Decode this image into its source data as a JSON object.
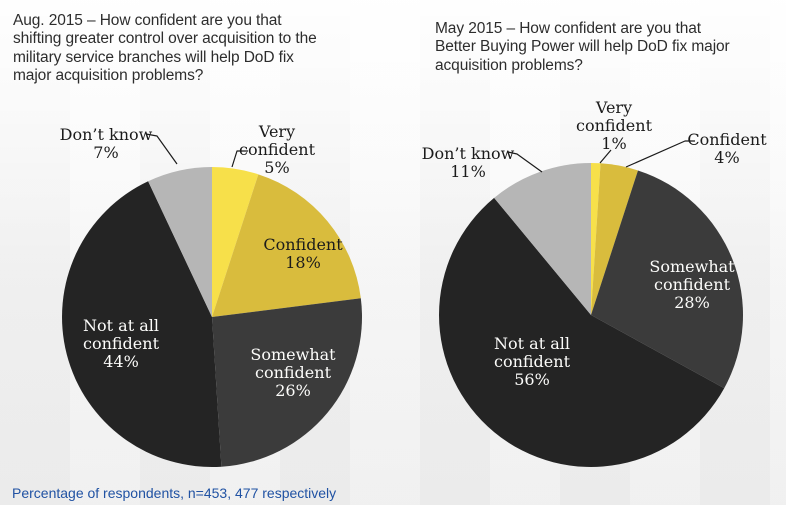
{
  "footnote": "Percentage of respondents, n=453, 477 respectively",
  "colors": {
    "very_confident": "#F7E04A",
    "confident": "#D9BC3D",
    "somewhat_confident": "#3B3B3B",
    "not_at_all_confident": "#242424",
    "dont_know": "#B6B6B6",
    "title_text": "#2D2D2D",
    "footnote_text": "#2052A3"
  },
  "chart_data": [
    {
      "type": "pie",
      "title": "Aug. 2015 – How confident are you that\nshifting greater control over acquisition to the\nmilitary service branches will help DoD fix\nmajor acquisition problems?",
      "n": 453,
      "unit": "%",
      "start": "top",
      "direction": "clockwise",
      "slices": [
        {
          "label": "Very confident",
          "value": 5,
          "color": "#F7E04A"
        },
        {
          "label": "Confident",
          "value": 18,
          "color": "#D9BC3D"
        },
        {
          "label": "Somewhat confident",
          "value": 26,
          "color": "#3B3B3B"
        },
        {
          "label": "Not at all confident",
          "value": 44,
          "color": "#242424"
        },
        {
          "label": "Don’t know",
          "value": 7,
          "color": "#B6B6B6"
        }
      ]
    },
    {
      "type": "pie",
      "title": "May 2015 – How confident are you that\nBetter Buying Power will help DoD fix major\nacquisition problems?",
      "n": 477,
      "unit": "%",
      "start": "top",
      "direction": "clockwise",
      "slices": [
        {
          "label": "Very confident",
          "value": 1,
          "color": "#F7E04A"
        },
        {
          "label": "Confident",
          "value": 4,
          "color": "#D9BC3D"
        },
        {
          "label": "Somewhat confident",
          "value": 28,
          "color": "#3B3B3B"
        },
        {
          "label": "Not at all confident",
          "value": 56,
          "color": "#242424"
        },
        {
          "label": "Don’t know",
          "value": 11,
          "color": "#B6B6B6"
        }
      ]
    }
  ]
}
